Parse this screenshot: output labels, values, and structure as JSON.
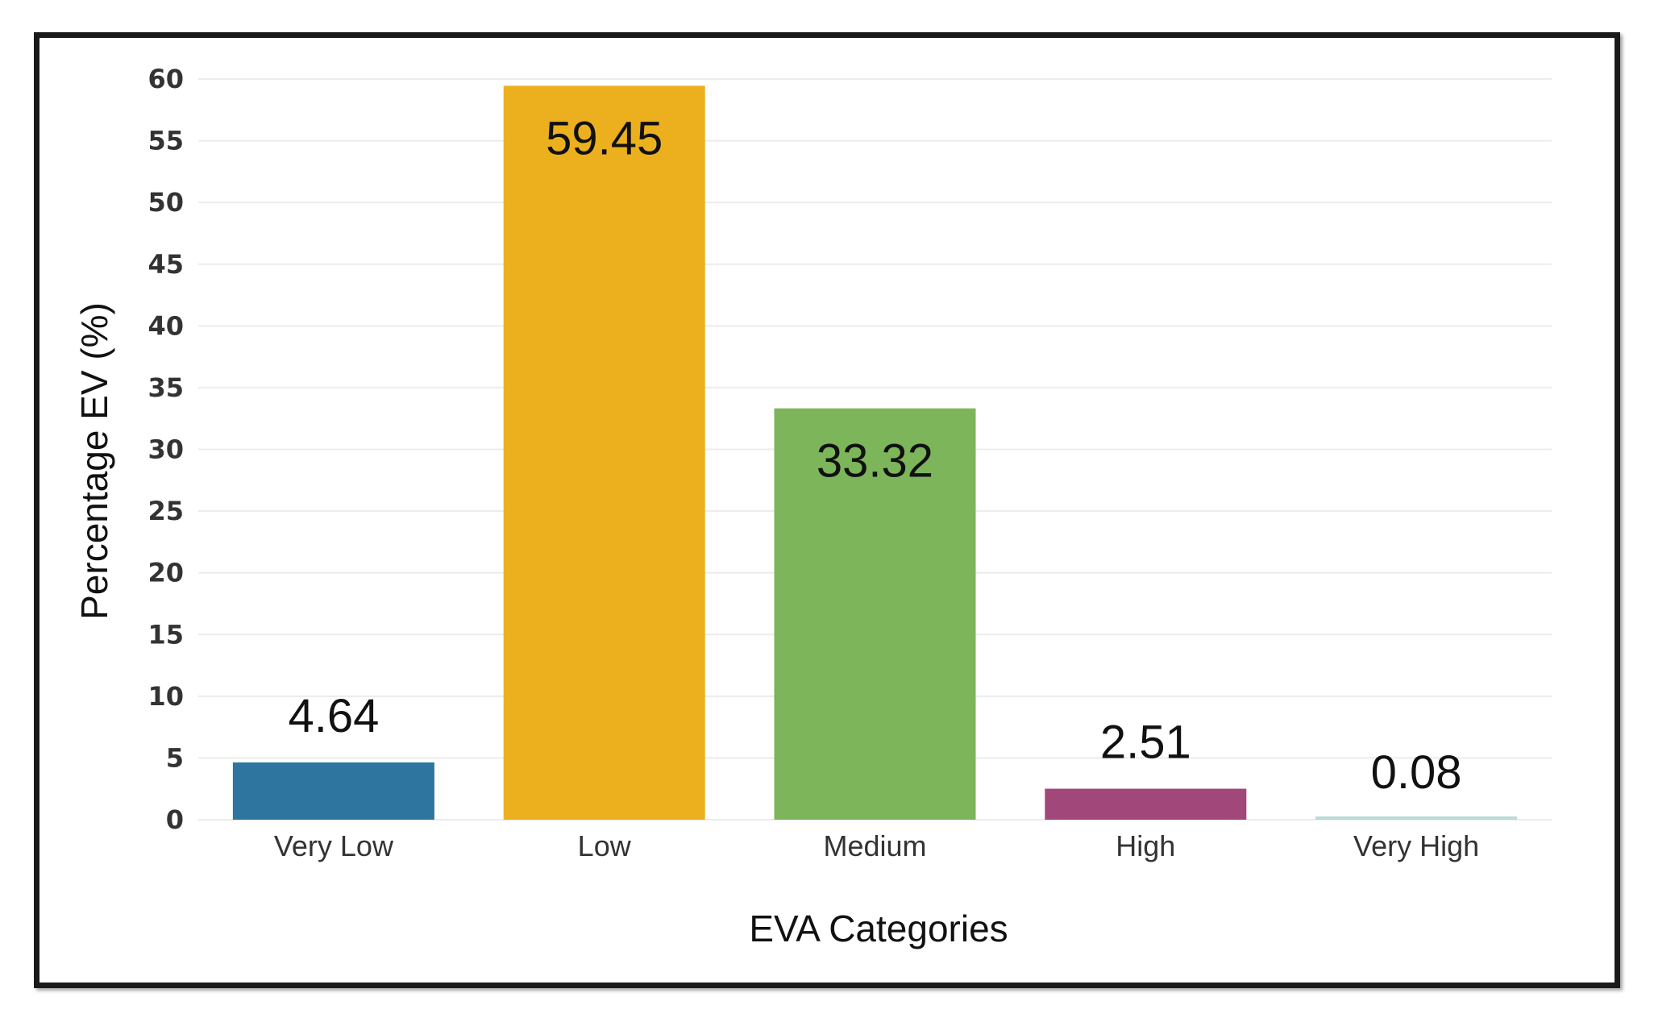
{
  "chart_data": {
    "type": "bar",
    "title": "",
    "xlabel": "EVA Categories",
    "ylabel": "Percentage EV (%)",
    "categories": [
      "Very Low",
      "Low",
      "Medium",
      "High",
      "Very High"
    ],
    "values": [
      4.64,
      59.45,
      33.32,
      2.51,
      0.08
    ],
    "value_labels": [
      "4.64",
      "59.45",
      "33.32",
      "2.51",
      "0.08"
    ],
    "colors": [
      "#2e75a0",
      "#ecb01f",
      "#7db55a",
      "#a2477a",
      "#b9dcd9"
    ],
    "ylim": [
      0,
      60
    ],
    "yticks": [
      0,
      5,
      10,
      15,
      20,
      25,
      30,
      35,
      40,
      45,
      50,
      55,
      60
    ],
    "grid": true,
    "legend": "none"
  }
}
